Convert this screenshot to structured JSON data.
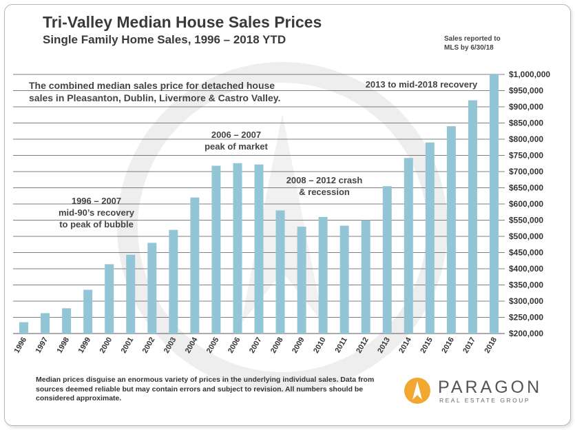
{
  "header": {
    "title": "Tri-Valley Median House Sales Prices",
    "subtitle": "Single Family Home Sales, 1996 – 2018 YTD",
    "note_line1": "Sales reported to",
    "note_line2": "MLS by 6/30/18"
  },
  "footer": {
    "disclaimer": "Median prices disguise an enormous variety of prices in the underlying individual sales. Data from sources deemed reliable but may contain errors and subject to revision. All numbers should be considered approximate.",
    "logo_name": "PARAGON",
    "logo_sub": "REAL ESTATE GROUP"
  },
  "colors": {
    "bar": "#92c5d6",
    "grid": "#555555",
    "logo_gold": "#f0a830"
  },
  "chart_data": {
    "type": "bar",
    "title": "Tri-Valley Median House Sales Prices",
    "subtitle": "Single Family Home Sales, 1996 – 2018 YTD",
    "categories": [
      "1996",
      "1997",
      "1998",
      "1999",
      "2000",
      "2001",
      "2002",
      "2003",
      "2004",
      "2005",
      "2006",
      "2007",
      "2008",
      "2009",
      "2010",
      "2011",
      "2012",
      "2013",
      "2014",
      "2015",
      "2016",
      "2017",
      "2018"
    ],
    "values": [
      235000,
      263000,
      278000,
      335000,
      414000,
      443000,
      480000,
      520000,
      620000,
      718000,
      726000,
      722000,
      580000,
      530000,
      560000,
      533000,
      550000,
      655000,
      742000,
      790000,
      840000,
      920000,
      1000000
    ],
    "ylim": [
      200000,
      1000000
    ],
    "ytick_step": 50000,
    "yticks": [
      "$200,000",
      "$250,000",
      "$300,000",
      "$350,000",
      "$400,000",
      "$450,000",
      "$500,000",
      "$550,000",
      "$600,000",
      "$650,000",
      "$700,000",
      "$750,000",
      "$800,000",
      "$850,000",
      "$900,000",
      "$950,000",
      "$1,000,000"
    ],
    "grid": true,
    "y_axis_side": "right",
    "annotations": [
      {
        "lines": [
          "The combined median sales price for detached house",
          "sales in Pleasanton, Dublin, Livermore & Castro Valley."
        ]
      },
      {
        "lines": [
          "1996 – 2007",
          "mid-90’s recovery",
          "to peak of bubble"
        ]
      },
      {
        "lines": [
          "2006 – 2007",
          "peak of market"
        ]
      },
      {
        "lines": [
          "2008 – 2012 crash",
          "& recession"
        ]
      },
      {
        "lines": [
          "2013 to mid-2018 recovery"
        ]
      }
    ]
  }
}
